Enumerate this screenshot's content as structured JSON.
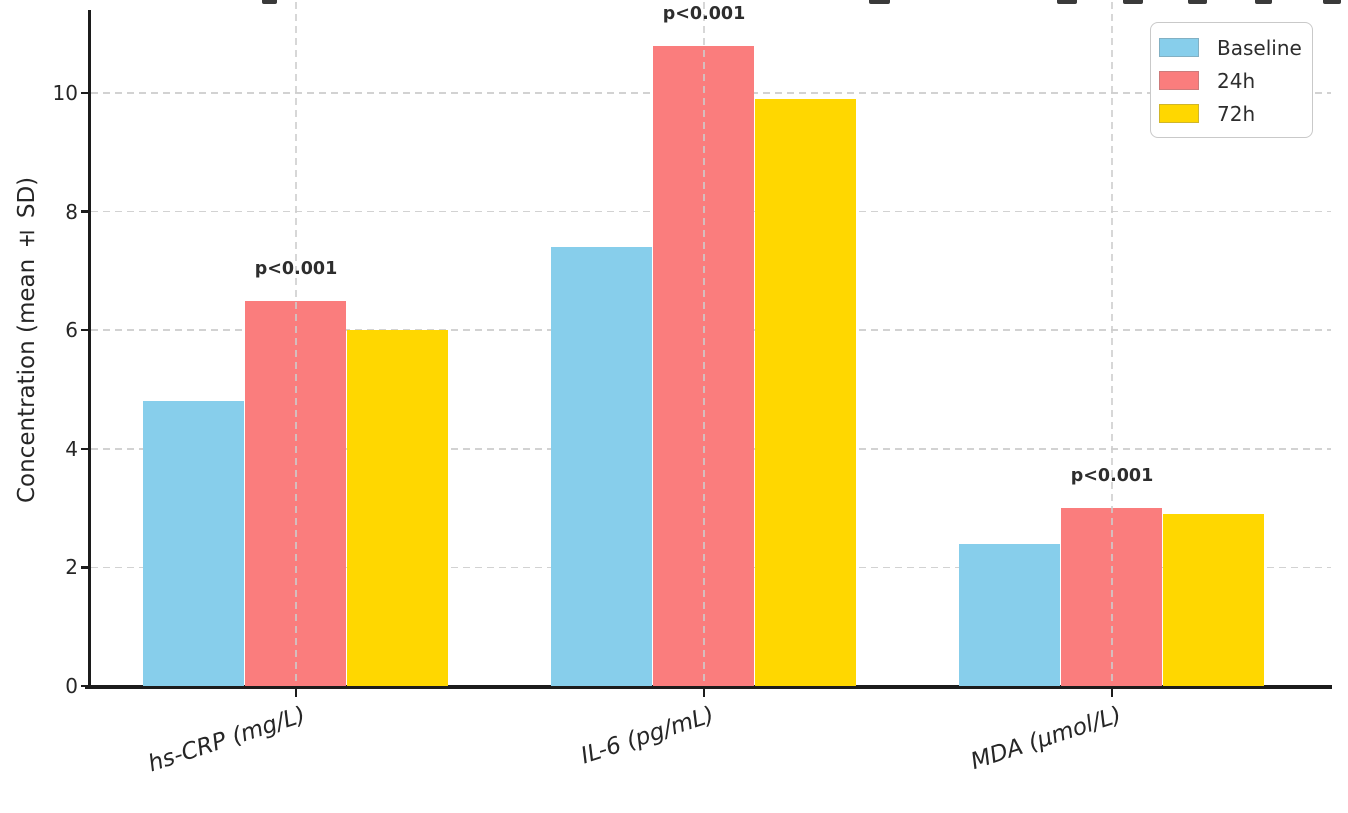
{
  "chart_data": {
    "type": "bar",
    "title_cropped_offscreen": true,
    "categories": [
      "hs-CRP (mg/L)",
      "IL-6 (pg/mL)",
      "MDA (µmol/L)"
    ],
    "series": [
      {
        "name": "Baseline",
        "color": "#87CEEB",
        "values": [
          4.8,
          7.4,
          2.4
        ]
      },
      {
        "name": "24h",
        "color": "#FA7D7D",
        "values": [
          6.5,
          10.8,
          3.0
        ]
      },
      {
        "name": "72h",
        "color": "#FFD700",
        "values": [
          6.0,
          9.9,
          2.9
        ]
      }
    ],
    "annotations": [
      {
        "text": "p<0.001",
        "category_index": 0,
        "above_series": "24h"
      },
      {
        "text": "p<0.001",
        "category_index": 1,
        "above_series": "24h"
      },
      {
        "text": "p<0.001",
        "category_index": 2,
        "above_series": "24h"
      }
    ],
    "ylabel": "Concentration (mean ± SD)",
    "xlabel": "",
    "yticks": [
      0,
      2,
      4,
      6,
      8,
      10
    ],
    "ylim": [
      0,
      11.35
    ],
    "grid": true,
    "grid_style": "dashed",
    "legend": {
      "position": "upper right",
      "entries": [
        "Baseline",
        "24h",
        "72h"
      ]
    }
  }
}
